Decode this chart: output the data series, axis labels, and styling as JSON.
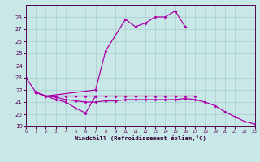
{
  "background_color": "#c8e8e8",
  "grid_color": "#aacccc",
  "line_color": "#aa00aa",
  "xlabel": "Windchill (Refroidissement éolien,°C)",
  "xlim": [
    0,
    23
  ],
  "ylim": [
    19,
    29
  ],
  "yticks": [
    19,
    20,
    21,
    22,
    23,
    24,
    25,
    26,
    27,
    28
  ],
  "xticks": [
    0,
    1,
    2,
    3,
    4,
    5,
    6,
    7,
    8,
    9,
    10,
    11,
    12,
    13,
    14,
    15,
    16,
    17,
    18,
    19,
    20,
    21,
    22,
    23
  ],
  "line1_x": [
    0,
    1,
    2,
    7,
    8,
    10,
    11,
    12,
    13,
    14,
    15,
    16
  ],
  "line1_y": [
    23.0,
    21.8,
    21.5,
    22.0,
    25.2,
    27.8,
    27.2,
    27.5,
    28.0,
    28.0,
    28.5,
    27.2
  ],
  "line2_x": [
    1,
    2,
    3,
    4,
    5,
    6,
    7,
    8,
    9,
    10,
    11,
    12,
    13,
    14,
    15,
    16,
    17
  ],
  "line2_y": [
    21.8,
    21.5,
    21.5,
    21.5,
    21.5,
    21.5,
    21.5,
    21.5,
    21.5,
    21.5,
    21.5,
    21.5,
    21.5,
    21.5,
    21.5,
    21.5,
    21.5
  ],
  "line3_x": [
    1,
    2,
    3,
    4,
    5,
    6,
    7
  ],
  "line3_y": [
    21.8,
    21.5,
    21.2,
    21.0,
    20.5,
    20.1,
    21.5
  ],
  "line4_x": [
    1,
    2,
    3,
    4,
    5,
    6,
    7,
    8,
    9,
    10,
    11,
    12,
    13,
    14,
    15,
    16,
    17,
    18,
    19,
    20,
    21,
    22,
    23
  ],
  "line4_y": [
    21.8,
    21.5,
    21.4,
    21.2,
    21.1,
    21.0,
    21.0,
    21.1,
    21.1,
    21.2,
    21.2,
    21.2,
    21.2,
    21.2,
    21.2,
    21.3,
    21.2,
    21.0,
    20.7,
    20.2,
    19.8,
    19.4,
    19.2
  ]
}
